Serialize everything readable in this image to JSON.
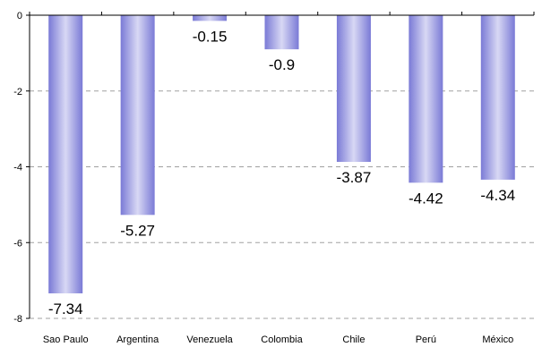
{
  "chart_data": {
    "type": "bar",
    "categories": [
      "Sao Paulo",
      "Argentina",
      "Venezuela",
      "Colombia",
      "Chile",
      "Perú",
      "México"
    ],
    "values": [
      -7.34,
      -5.27,
      -0.15,
      -0.9,
      -3.87,
      -4.42,
      -4.34
    ],
    "data_labels": [
      "-7.34",
      "-5.27",
      "-0.15",
      "-0.9",
      "-3.87",
      "-4.42",
      "-4.34"
    ],
    "yticks": [
      0,
      -2,
      -4,
      -6,
      -8
    ],
    "ytick_labels": [
      "0",
      "-2",
      "-4",
      "-6",
      "-8"
    ],
    "ylim": [
      -8,
      0
    ],
    "title": "",
    "xlabel": "",
    "ylabel": "",
    "grid": "horizontal dashed",
    "legend": "none",
    "colors": {
      "bar_edge": "#7a7ad6",
      "bar_center": "#d8d8f4",
      "gridline": "#a0a0a0",
      "axis": "#000000"
    }
  }
}
